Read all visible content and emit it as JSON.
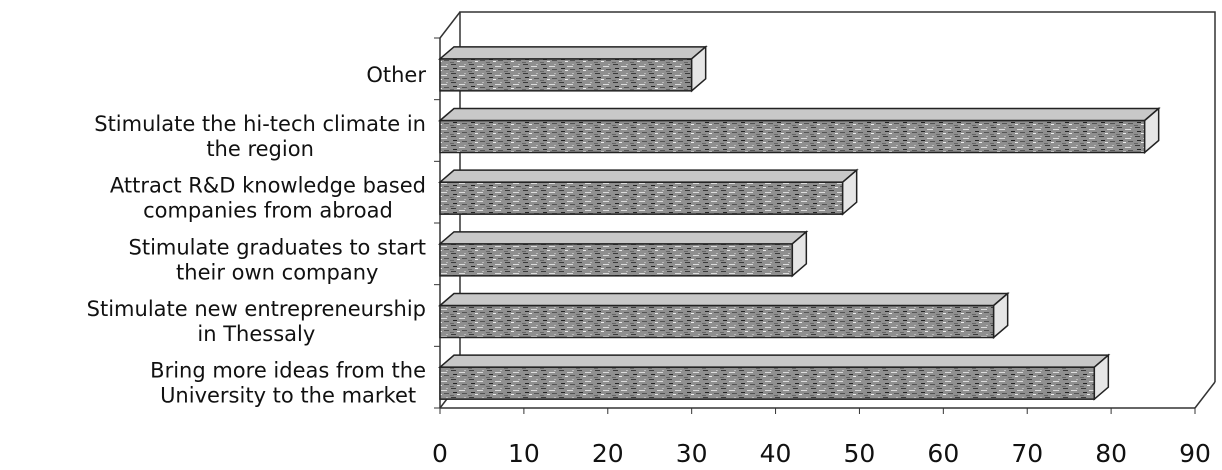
{
  "chart_data": {
    "type": "bar",
    "orientation": "horizontal",
    "three_d": true,
    "categories": [
      [
        "Other"
      ],
      [
        "Stimulate the hi-tech climate in",
        "the region"
      ],
      [
        "Attract R&D knowledge based",
        "companies from abroad"
      ],
      [
        "Stimulate graduates to start",
        "their own company"
      ],
      [
        "Stimulate new entrepreneurship",
        "in Thessaly"
      ],
      [
        "Bring more ideas from the",
        "University to the market"
      ]
    ],
    "values": [
      30,
      84,
      48,
      42,
      66,
      78
    ],
    "xlim": [
      0,
      90
    ],
    "xticks": [
      "0",
      "10",
      "20",
      "30",
      "40",
      "50",
      "60",
      "70",
      "80",
      "90"
    ],
    "title": "",
    "xlabel": "",
    "ylabel": "",
    "grid": false,
    "colors": {
      "bar_fill": "#9a9a9a",
      "bar_edge": "#222222",
      "frame": "#333333"
    }
  }
}
